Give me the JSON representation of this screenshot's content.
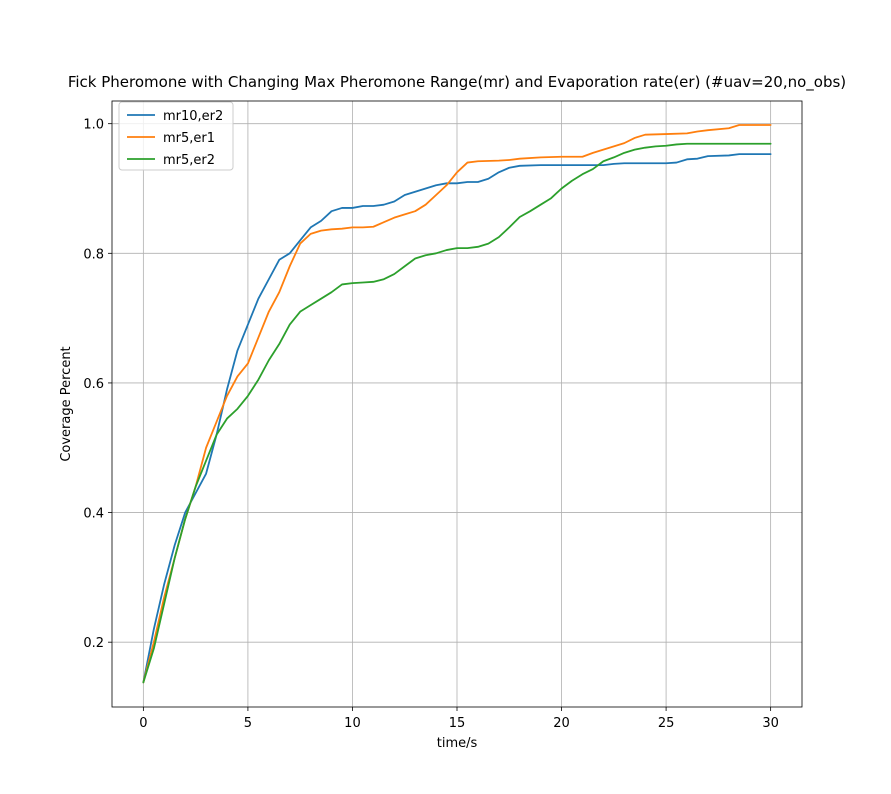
{
  "chart_data": {
    "type": "line",
    "title": "Fick Pheromone with Changing Max Pheromone Range(mr) and Evaporation rate(er) (#uav=20,no_obs)",
    "xlabel": "time/s",
    "ylabel": "Coverage Percent",
    "xlim": [
      -1.5,
      31.5
    ],
    "ylim": [
      0.1,
      1.035
    ],
    "xticks": [
      0,
      5,
      10,
      15,
      20,
      25,
      30
    ],
    "yticks": [
      0.2,
      0.4,
      0.6,
      0.8,
      1.0
    ],
    "xtick_labels": [
      "0",
      "5",
      "10",
      "15",
      "20",
      "25",
      "30"
    ],
    "ytick_labels": [
      "0.2",
      "0.4",
      "0.6",
      "0.8",
      "1.0"
    ],
    "grid": true,
    "legend_position": "top-left",
    "series": [
      {
        "name": "mr10,er2",
        "color": "#1f77b4",
        "points": [
          [
            0,
            0.138
          ],
          [
            0.5,
            0.22
          ],
          [
            1,
            0.29
          ],
          [
            1.5,
            0.35
          ],
          [
            2,
            0.4
          ],
          [
            2.5,
            0.43
          ],
          [
            3,
            0.46
          ],
          [
            3.5,
            0.52
          ],
          [
            4,
            0.59
          ],
          [
            4.5,
            0.65
          ],
          [
            5,
            0.69
          ],
          [
            5.5,
            0.73
          ],
          [
            6,
            0.76
          ],
          [
            6.5,
            0.79
          ],
          [
            7,
            0.8
          ],
          [
            7.5,
            0.82
          ],
          [
            8,
            0.84
          ],
          [
            8.5,
            0.85
          ],
          [
            9,
            0.865
          ],
          [
            9.5,
            0.87
          ],
          [
            10,
            0.87
          ],
          [
            10.5,
            0.873
          ],
          [
            11,
            0.873
          ],
          [
            11.5,
            0.875
          ],
          [
            12,
            0.88
          ],
          [
            12.5,
            0.89
          ],
          [
            13,
            0.895
          ],
          [
            13.5,
            0.9
          ],
          [
            14,
            0.905
          ],
          [
            14.5,
            0.908
          ],
          [
            15,
            0.908
          ],
          [
            15.5,
            0.91
          ],
          [
            16,
            0.91
          ],
          [
            16.5,
            0.915
          ],
          [
            17,
            0.925
          ],
          [
            17.5,
            0.932
          ],
          [
            18,
            0.935
          ],
          [
            19,
            0.936
          ],
          [
            20,
            0.936
          ],
          [
            21,
            0.936
          ],
          [
            22,
            0.936
          ],
          [
            22.5,
            0.938
          ],
          [
            23,
            0.939
          ],
          [
            24,
            0.939
          ],
          [
            25,
            0.939
          ],
          [
            25.5,
            0.94
          ],
          [
            26,
            0.945
          ],
          [
            26.5,
            0.946
          ],
          [
            27,
            0.95
          ],
          [
            28,
            0.951
          ],
          [
            28.5,
            0.953
          ],
          [
            29,
            0.953
          ],
          [
            30,
            0.953
          ]
        ]
      },
      {
        "name": "mr5,er1",
        "color": "#ff7f0e",
        "points": [
          [
            0,
            0.138
          ],
          [
            0.5,
            0.2
          ],
          [
            1,
            0.27
          ],
          [
            1.5,
            0.33
          ],
          [
            2,
            0.39
          ],
          [
            2.5,
            0.44
          ],
          [
            3,
            0.5
          ],
          [
            3.5,
            0.54
          ],
          [
            4,
            0.58
          ],
          [
            4.5,
            0.61
          ],
          [
            5,
            0.63
          ],
          [
            5.5,
            0.67
          ],
          [
            6,
            0.71
          ],
          [
            6.5,
            0.74
          ],
          [
            7,
            0.78
          ],
          [
            7.5,
            0.815
          ],
          [
            8,
            0.83
          ],
          [
            8.5,
            0.835
          ],
          [
            9,
            0.837
          ],
          [
            9.5,
            0.838
          ],
          [
            10,
            0.84
          ],
          [
            10.5,
            0.84
          ],
          [
            11,
            0.841
          ],
          [
            11.5,
            0.848
          ],
          [
            12,
            0.855
          ],
          [
            12.5,
            0.86
          ],
          [
            13,
            0.865
          ],
          [
            13.5,
            0.875
          ],
          [
            14,
            0.89
          ],
          [
            14.5,
            0.905
          ],
          [
            15,
            0.925
          ],
          [
            15.5,
            0.94
          ],
          [
            16,
            0.942
          ],
          [
            17,
            0.943
          ],
          [
            17.5,
            0.944
          ],
          [
            18,
            0.946
          ],
          [
            19,
            0.948
          ],
          [
            20,
            0.949
          ],
          [
            21,
            0.949
          ],
          [
            21.5,
            0.955
          ],
          [
            22,
            0.96
          ],
          [
            22.5,
            0.965
          ],
          [
            23,
            0.97
          ],
          [
            23.5,
            0.978
          ],
          [
            24,
            0.983
          ],
          [
            25,
            0.984
          ],
          [
            26,
            0.985
          ],
          [
            26.5,
            0.988
          ],
          [
            27,
            0.99
          ],
          [
            28,
            0.993
          ],
          [
            28.5,
            0.998
          ],
          [
            29,
            0.998
          ],
          [
            30,
            0.998
          ]
        ]
      },
      {
        "name": "mr5,er2",
        "color": "#2ca02c",
        "points": [
          [
            0,
            0.138
          ],
          [
            0.5,
            0.19
          ],
          [
            1,
            0.26
          ],
          [
            1.5,
            0.33
          ],
          [
            2,
            0.39
          ],
          [
            2.5,
            0.44
          ],
          [
            3,
            0.48
          ],
          [
            3.5,
            0.52
          ],
          [
            4,
            0.545
          ],
          [
            4.5,
            0.56
          ],
          [
            5,
            0.58
          ],
          [
            5.5,
            0.605
          ],
          [
            6,
            0.635
          ],
          [
            6.5,
            0.66
          ],
          [
            7,
            0.69
          ],
          [
            7.5,
            0.71
          ],
          [
            8,
            0.72
          ],
          [
            8.5,
            0.73
          ],
          [
            9,
            0.74
          ],
          [
            9.5,
            0.752
          ],
          [
            10,
            0.754
          ],
          [
            10.5,
            0.755
          ],
          [
            11,
            0.756
          ],
          [
            11.5,
            0.76
          ],
          [
            12,
            0.768
          ],
          [
            12.5,
            0.78
          ],
          [
            13,
            0.792
          ],
          [
            13.5,
            0.797
          ],
          [
            14,
            0.8
          ],
          [
            14.5,
            0.805
          ],
          [
            15,
            0.808
          ],
          [
            15.5,
            0.808
          ],
          [
            16,
            0.81
          ],
          [
            16.5,
            0.815
          ],
          [
            17,
            0.825
          ],
          [
            17.5,
            0.84
          ],
          [
            18,
            0.856
          ],
          [
            18.5,
            0.865
          ],
          [
            19,
            0.875
          ],
          [
            19.5,
            0.885
          ],
          [
            20,
            0.9
          ],
          [
            20.5,
            0.912
          ],
          [
            21,
            0.922
          ],
          [
            21.5,
            0.93
          ],
          [
            22,
            0.942
          ],
          [
            22.5,
            0.948
          ],
          [
            23,
            0.955
          ],
          [
            23.5,
            0.96
          ],
          [
            24,
            0.963
          ],
          [
            24.5,
            0.965
          ],
          [
            25,
            0.966
          ],
          [
            25.5,
            0.968
          ],
          [
            26,
            0.969
          ],
          [
            27,
            0.969
          ],
          [
            28,
            0.969
          ],
          [
            29,
            0.969
          ],
          [
            30,
            0.969
          ]
        ]
      }
    ]
  }
}
